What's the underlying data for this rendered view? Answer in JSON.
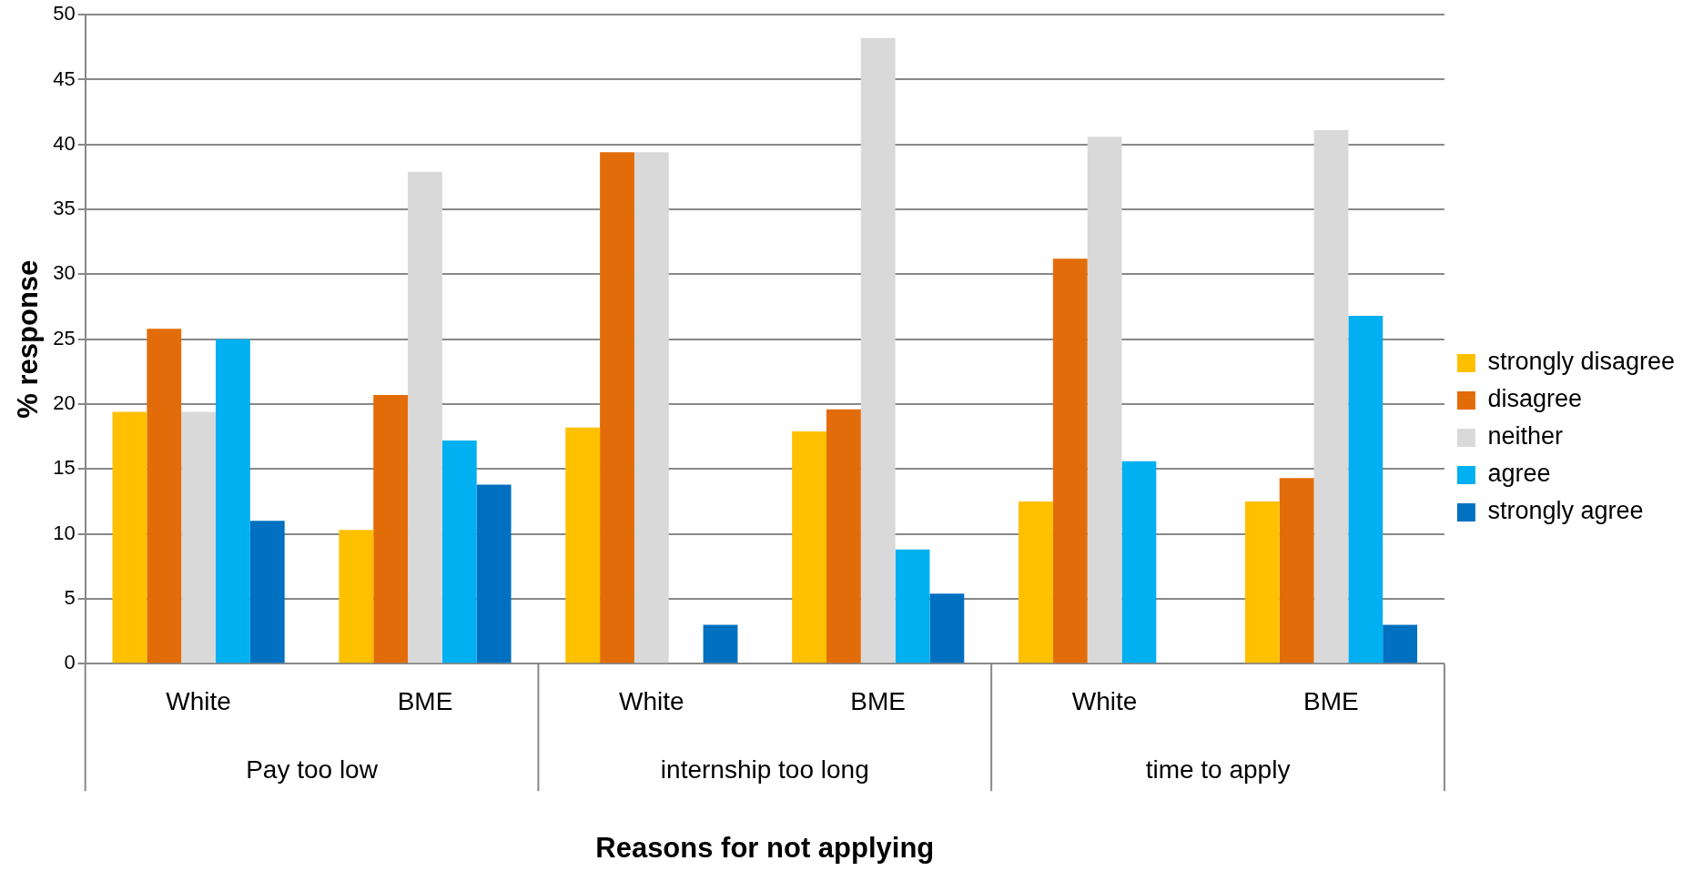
{
  "chart_data": {
    "type": "bar",
    "ylabel": "% response",
    "xlabel": "Reasons for not applying",
    "categories": [
      "White",
      "BME",
      "White",
      "BME",
      "White",
      "BME"
    ],
    "series": [
      {
        "name": "strongly disagree",
        "color": "#ffc000",
        "values": [
          19.4,
          10.3,
          18.2,
          17.9,
          12.5,
          12.5
        ]
      },
      {
        "name": "disagree",
        "color": "#e36c0a",
        "values": [
          25.8,
          20.7,
          39.4,
          19.6,
          31.2,
          14.3
        ]
      },
      {
        "name": "neither",
        "color": "#d9d9d9",
        "values": [
          19.4,
          37.9,
          39.4,
          48.2,
          40.6,
          41.1
        ]
      },
      {
        "name": "agree",
        "color": "#00b0f0",
        "values": [
          25.0,
          17.2,
          0,
          8.8,
          15.6,
          26.8
        ]
      },
      {
        "name": "strongly agree",
        "color": "#0070c0",
        "values": [
          11.0,
          13.8,
          3.0,
          5.4,
          0,
          3.0
        ]
      }
    ],
    "annotations": [
      "Pay too low",
      "internship too long",
      "time to apply"
    ],
    "ylim": [
      0,
      50
    ],
    "yticks": [
      0,
      5,
      10,
      15,
      20,
      25,
      30,
      35,
      40,
      45,
      50
    ],
    "grid": "y",
    "legend": "right"
  }
}
